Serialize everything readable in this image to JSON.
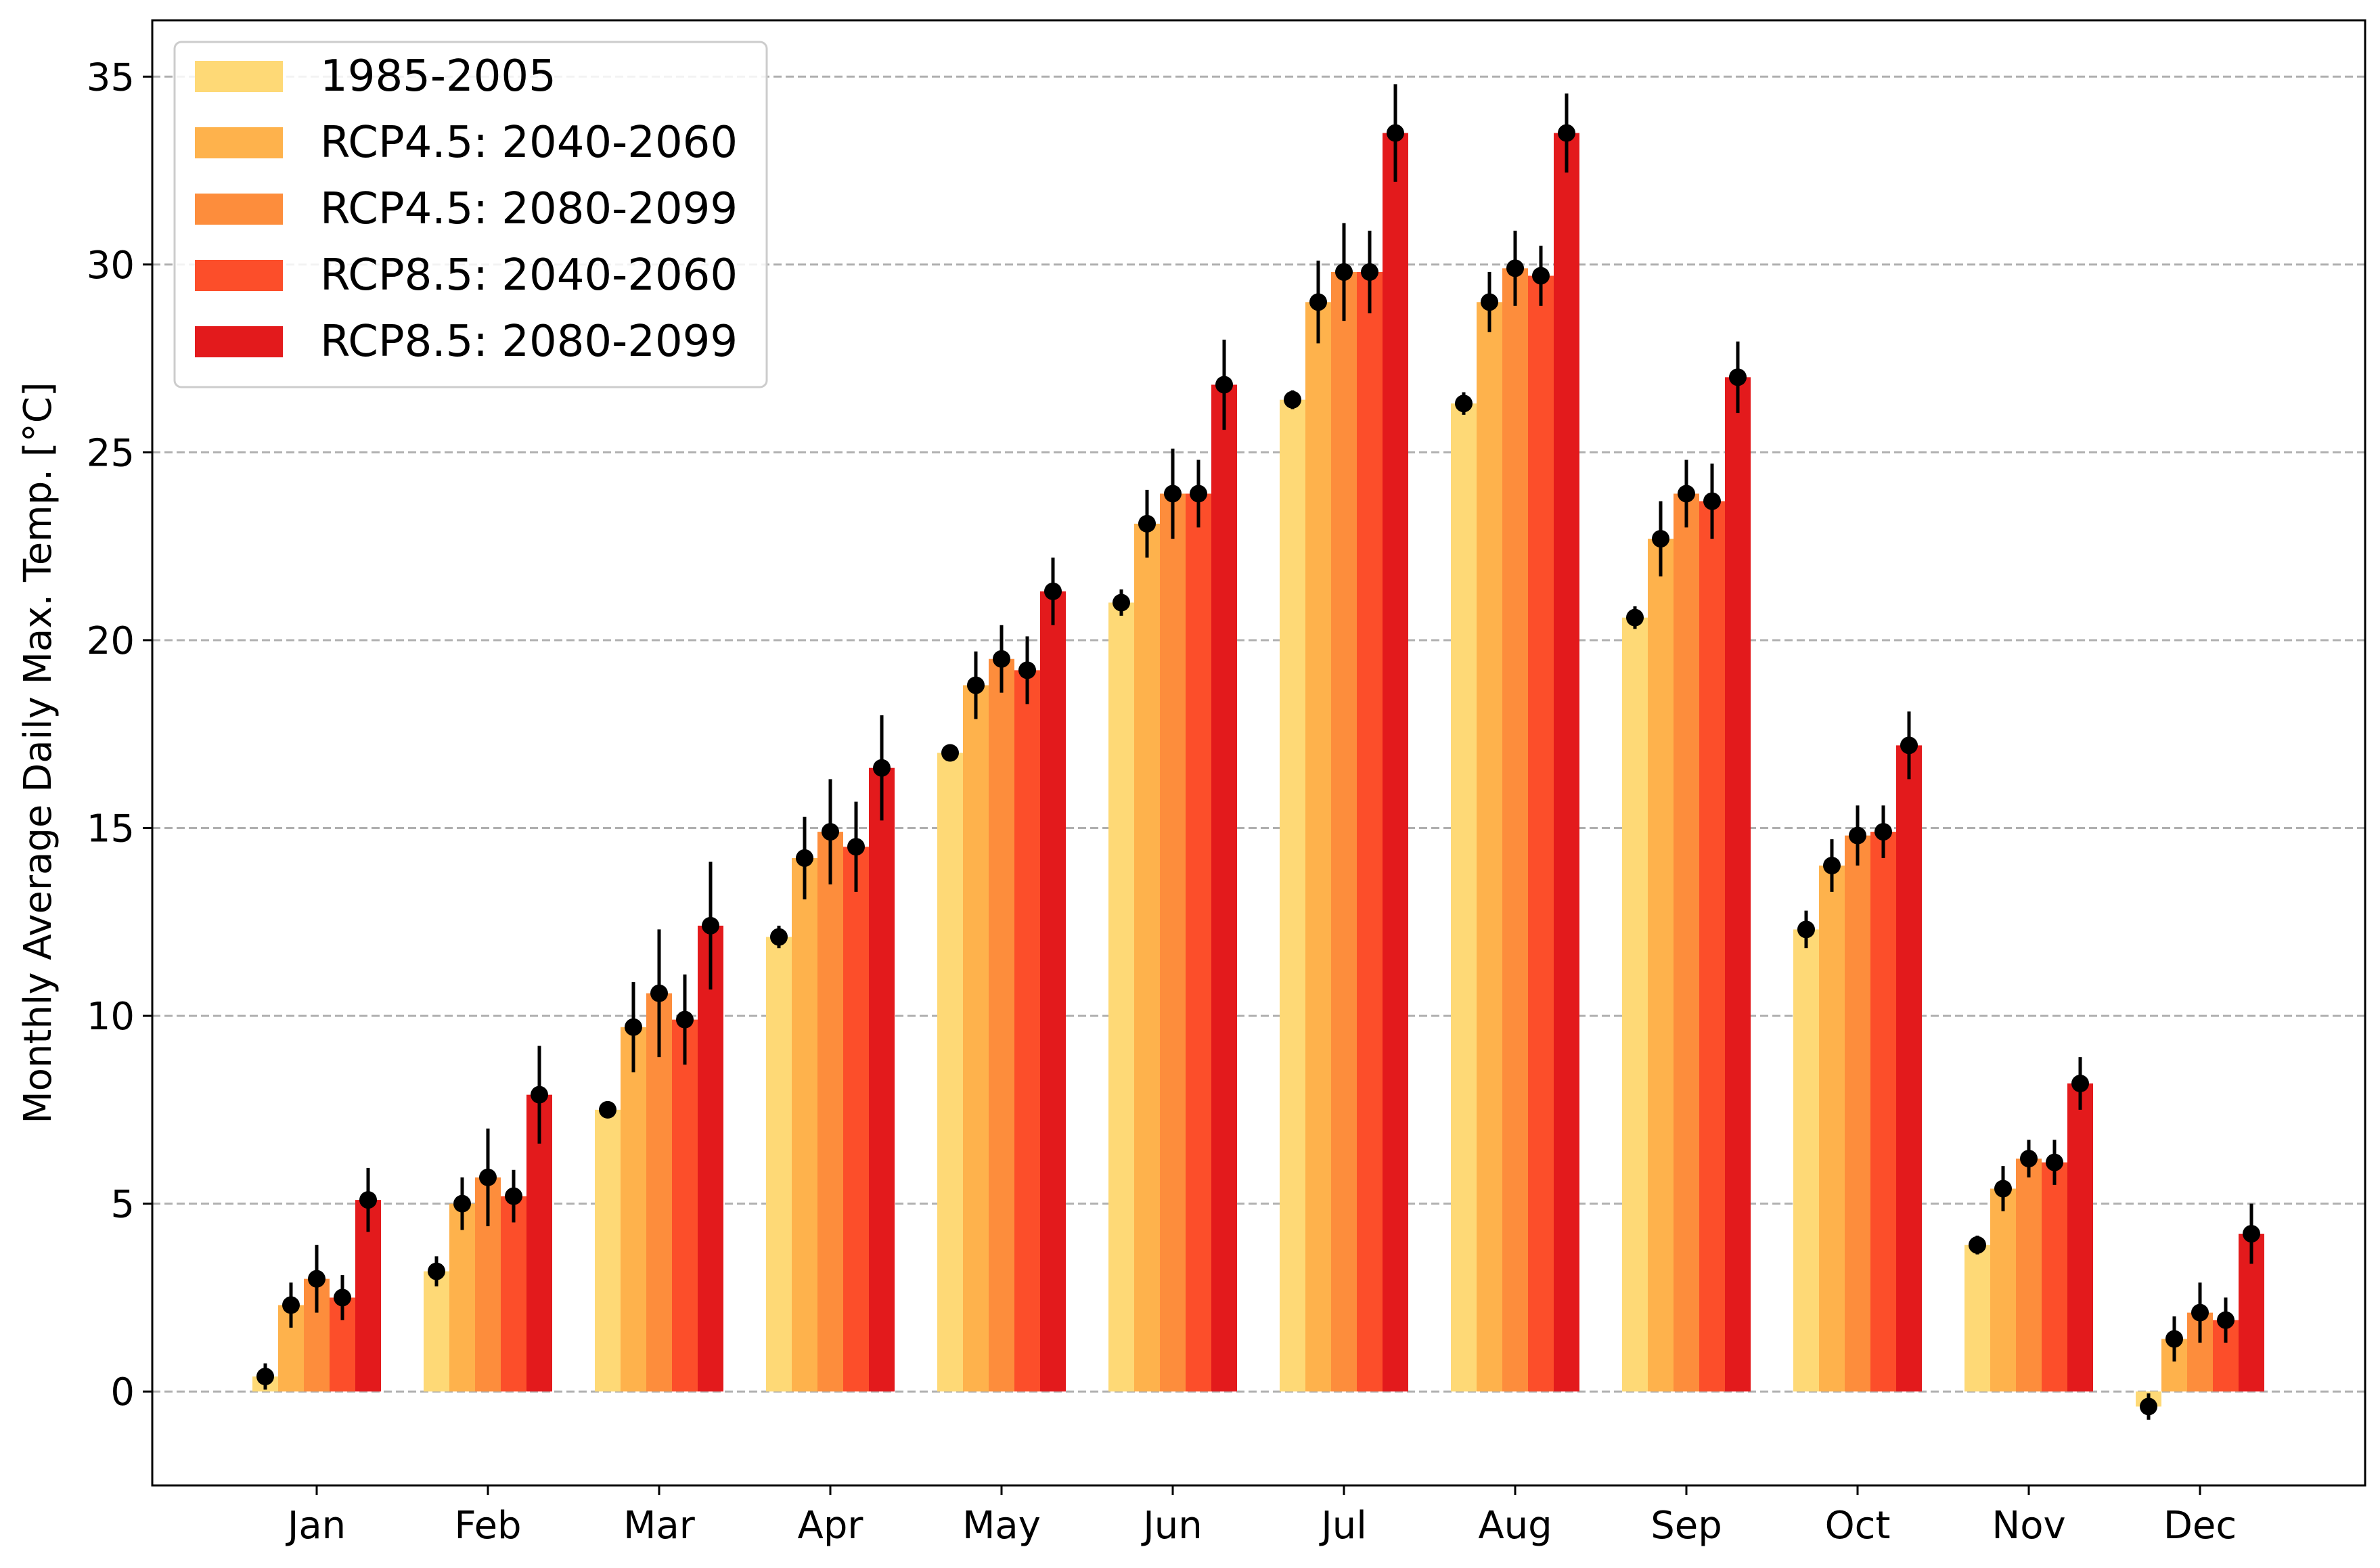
{
  "chart_data": {
    "type": "bar",
    "title": "",
    "xlabel": "",
    "ylabel": "Monthly Average Daily Max. Temp. [°C]",
    "ylim": [
      -2.5,
      36.5
    ],
    "yticks": [
      0,
      5,
      10,
      15,
      20,
      25,
      30,
      35
    ],
    "grid": "y-dashed",
    "legend_position": "top-left",
    "categories": [
      "Jan",
      "Feb",
      "Mar",
      "Apr",
      "May",
      "Jun",
      "Jul",
      "Aug",
      "Sep",
      "Oct",
      "Nov",
      "Dec"
    ],
    "series": [
      {
        "name": "1985-2005",
        "color": "#fed976",
        "values": [
          0.4,
          3.2,
          7.5,
          12.1,
          17.0,
          21.0,
          26.4,
          26.3,
          20.6,
          12.3,
          3.9,
          -0.4
        ],
        "errors": [
          0.35,
          0.4,
          0.2,
          0.3,
          0.15,
          0.35,
          0.25,
          0.3,
          0.3,
          0.5,
          0.25,
          0.35
        ]
      },
      {
        "name": "RCP4.5: 2040-2060",
        "color": "#feb24c",
        "values": [
          2.3,
          5.0,
          9.7,
          14.2,
          18.8,
          23.1,
          29.0,
          29.0,
          22.7,
          14.0,
          5.4,
          1.4
        ],
        "errors": [
          0.6,
          0.7,
          1.2,
          1.1,
          0.9,
          0.9,
          1.1,
          0.8,
          1.0,
          0.7,
          0.6,
          0.6
        ]
      },
      {
        "name": "RCP4.5: 2080-2099",
        "color": "#fd8d3c",
        "values": [
          3.0,
          5.7,
          10.6,
          14.9,
          19.5,
          23.9,
          29.8,
          29.9,
          23.9,
          14.8,
          6.2,
          2.1
        ],
        "errors": [
          0.9,
          1.3,
          1.7,
          1.4,
          0.9,
          1.2,
          1.3,
          1.0,
          0.9,
          0.8,
          0.5,
          0.8
        ]
      },
      {
        "name": "RCP8.5: 2040-2060",
        "color": "#fc4e2a",
        "values": [
          2.5,
          5.2,
          9.9,
          14.5,
          19.2,
          23.9,
          29.8,
          29.7,
          23.7,
          14.9,
          6.1,
          1.9
        ],
        "errors": [
          0.6,
          0.7,
          1.2,
          1.2,
          0.9,
          0.9,
          1.1,
          0.8,
          1.0,
          0.7,
          0.6,
          0.6
        ]
      },
      {
        "name": "RCP8.5: 2080-2099",
        "color": "#e31a1c",
        "values": [
          5.1,
          7.9,
          12.4,
          16.6,
          21.3,
          26.8,
          33.5,
          33.5,
          27.0,
          17.2,
          8.2,
          4.2
        ],
        "errors": [
          0.85,
          1.3,
          1.7,
          1.4,
          0.9,
          1.2,
          1.3,
          1.05,
          0.95,
          0.9,
          0.7,
          0.8
        ]
      }
    ],
    "colors": {
      "grid": "#b0b0b0",
      "axis": "#000000",
      "marker": "#000000",
      "legend_border": "#cccccc"
    }
  }
}
